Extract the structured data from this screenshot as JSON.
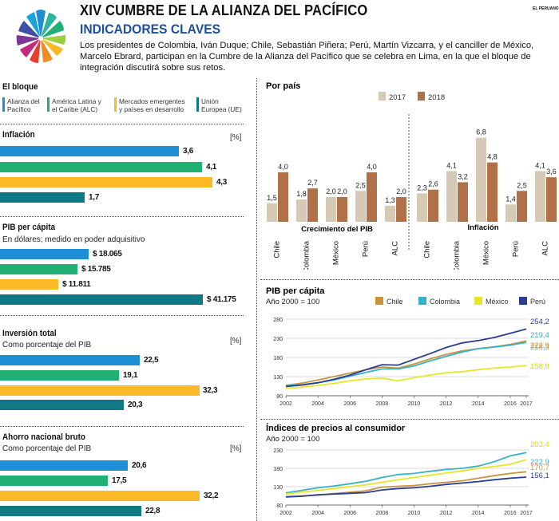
{
  "header": {
    "title": "XIV CUMBRE DE LA ALIANZA DEL PACÍFICO",
    "subtitle": "INDICADORES CLAVES",
    "intro": "Los presidentes de Colombia, Iván Duque; Chile, Sebastián Piñera; Perú, Martín Vizcarra, y el canciller de México, Marcelo Ebrard, participan en la Cumbre de la Alianza del Pacífico que se celebra en Lima, en la que el bloque de integración discutirá sobre sus retos.",
    "brand": "EL PERUANO"
  },
  "colors": {
    "alianza": "#1e8fd6",
    "alc": "#21b073",
    "emergentes": "#fbb928",
    "ue": "#0f7a86",
    "y2017": "#d6c9b5",
    "y2018": "#b07048",
    "chile": "#c89442",
    "colombia": "#35b2c9",
    "mexico": "#e7e62b",
    "peru": "#2b3d93"
  },
  "left": {
    "bloque_title": "El bloque",
    "legend": [
      {
        "key": "alianza",
        "label1": "Alianza del",
        "label2": "Pacífico"
      },
      {
        "key": "alc",
        "label1": "América Latina y",
        "label2": "el Caribe (ALC)"
      },
      {
        "key": "emergentes",
        "label1": "Mercados emergentes",
        "label2": "y países en desarrollo"
      },
      {
        "key": "ue",
        "label1": "Unión",
        "label2": "Europea (UE)"
      }
    ],
    "sections": [
      {
        "title": "Inflación",
        "sub": "",
        "unit": "[%]",
        "labels": [
          "3,6",
          "4,1",
          "4,3",
          "1,7"
        ],
        "values": [
          3.6,
          4.1,
          4.3,
          1.7
        ]
      },
      {
        "title": "PIB per cápita",
        "sub": "En dólares; medido en poder adquisitivo",
        "unit": "",
        "labels": [
          "$ 18.065",
          "$ 15.785",
          "$ 11.811",
          "$ 41.175"
        ],
        "values": [
          18065,
          15785,
          11811,
          41175
        ]
      },
      {
        "title": "Inversión total",
        "sub": "Como porcentaje del PIB",
        "unit": "[%]",
        "labels": [
          "22,5",
          "19,1",
          "32,3",
          "20,3"
        ],
        "values": [
          22.5,
          19.1,
          32.3,
          20.3
        ]
      },
      {
        "title": "Ahorro nacional bruto",
        "sub": "Como porcentaje del PIB",
        "unit": "[%]",
        "labels": [
          "20,6",
          "17,5",
          "32,2",
          "22,8"
        ],
        "values": [
          20.6,
          17.5,
          32.2,
          22.8
        ]
      }
    ]
  },
  "chart_data": [
    {
      "type": "bar",
      "title": "Por país",
      "legend": [
        "2017",
        "2018"
      ],
      "groups": [
        {
          "caption": "Crecimiento del PIB",
          "categories": [
            "Chile",
            "Colombia",
            "México",
            "Perú",
            "ALC"
          ],
          "series": [
            {
              "name": "2017",
              "values": [
                1.5,
                1.8,
                2.0,
                2.5,
                1.3
              ],
              "labels": [
                "1,5",
                "1,8",
                "2,0",
                "2,5",
                "1,3"
              ]
            },
            {
              "name": "2018",
              "values": [
                4.0,
                2.7,
                2.0,
                4.0,
                2.0
              ],
              "labels": [
                "4,0",
                "2,7",
                "2,0",
                "4,0",
                "2,0"
              ]
            }
          ]
        },
        {
          "caption": "Inflación",
          "categories": [
            "Chile",
            "Colombia",
            "México",
            "Perú",
            "ALC"
          ],
          "series": [
            {
              "name": "2017",
              "values": [
                2.3,
                4.1,
                6.8,
                1.4,
                4.1
              ],
              "labels": [
                "2,3",
                "4,1",
                "6,8",
                "1,4",
                "4,1"
              ]
            },
            {
              "name": "2018",
              "values": [
                2.6,
                3.2,
                4.8,
                2.5,
                3.6
              ],
              "labels": [
                "2,6",
                "3,2",
                "4,8",
                "2,5",
                "3,6"
              ]
            }
          ]
        }
      ]
    },
    {
      "type": "line",
      "title": "PIB per cápita",
      "subtitle": "Año 2000 = 100",
      "x": [
        2002,
        2003,
        2004,
        2005,
        2006,
        2007,
        2008,
        2009,
        2010,
        2011,
        2012,
        2013,
        2014,
        2015,
        2016,
        2017
      ],
      "x_ticks": [
        2002,
        2004,
        2006,
        2008,
        2010,
        2012,
        2014,
        2016,
        2017
      ],
      "ylim": [
        80,
        280
      ],
      "y_ticks": [
        80,
        130,
        180,
        230,
        280
      ],
      "series": [
        {
          "name": "Chile",
          "key": "chile",
          "end_label": "222,9",
          "values": [
            107,
            113,
            121,
            130,
            139,
            148,
            155,
            152,
            163,
            176,
            188,
            197,
            203,
            208,
            214,
            222.9
          ]
        },
        {
          "name": "Colombia",
          "key": "colombia",
          "end_label": "219,4",
          "values": [
            106,
            109,
            114,
            121,
            131,
            141,
            150,
            150,
            158,
            171,
            183,
            194,
            203,
            207,
            212,
            219.4
          ]
        },
        {
          "name": "México",
          "key": "mexico",
          "end_label": "158,8",
          "values": [
            99,
            102,
            107,
            112,
            119,
            124,
            126,
            119,
            127,
            134,
            140,
            143,
            148,
            152,
            155,
            158.8
          ]
        },
        {
          "name": "Perú",
          "key": "peru",
          "end_label": "254,2",
          "values": [
            104,
            108,
            114,
            123,
            134,
            148,
            161,
            160,
            175,
            190,
            206,
            218,
            224,
            232,
            243,
            254.2
          ]
        }
      ],
      "extra_label": "218,3"
    },
    {
      "type": "line",
      "title": "Índices de precios al consumidor",
      "subtitle": "Año 2000 = 100",
      "x": [
        2002,
        2003,
        2004,
        2005,
        2006,
        2007,
        2008,
        2009,
        2010,
        2011,
        2012,
        2013,
        2014,
        2015,
        2016,
        2017
      ],
      "x_ticks": [
        2002,
        2004,
        2006,
        2008,
        2010,
        2012,
        2014,
        2016,
        2017
      ],
      "ylim": [
        80,
        230
      ],
      "y_ticks": [
        80,
        130,
        180,
        230
      ],
      "series": [
        {
          "name": "Colombia",
          "key": "colombia",
          "end_label": "222,9",
          "values": [
            113,
            120,
            127,
            132,
            138,
            145,
            155,
            163,
            166,
            172,
            177,
            180,
            186,
            198,
            214,
            222.9
          ]
        },
        {
          "name": "México",
          "key": "mexico",
          "end_label": "203,4",
          "values": [
            110,
            115,
            120,
            125,
            130,
            135,
            142,
            149,
            155,
            161,
            167,
            173,
            180,
            185,
            191,
            203.4
          ]
        },
        {
          "name": "Chile",
          "key": "chile",
          "end_label": "170,7",
          "values": [
            103,
            105,
            107,
            111,
            115,
            119,
            129,
            131,
            133,
            138,
            142,
            146,
            153,
            160,
            166,
            170.7
          ]
        },
        {
          "name": "Perú",
          "key": "peru",
          "end_label": "156,1",
          "values": [
            102,
            104,
            108,
            110,
            112,
            114,
            121,
            125,
            127,
            131,
            136,
            140,
            144,
            149,
            153,
            156.1
          ]
        }
      ]
    }
  ]
}
